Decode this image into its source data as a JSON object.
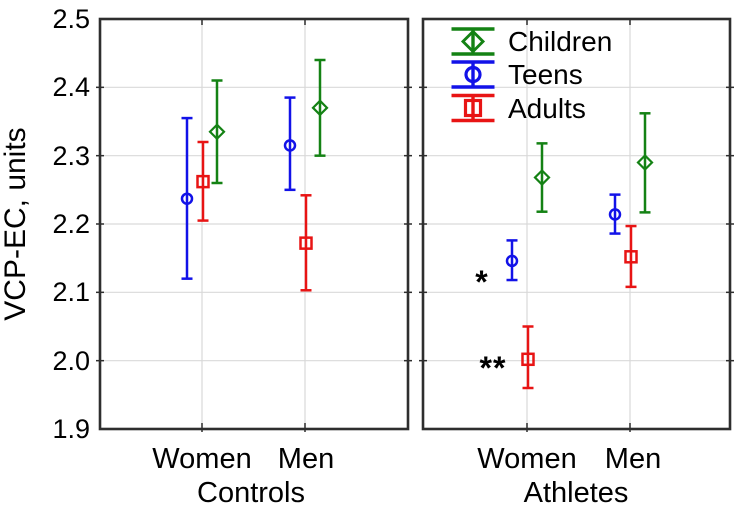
{
  "chart_data": {
    "type": "errorbar",
    "title": "",
    "ylabel": "VCP-EC, units",
    "ylim": [
      1.9,
      2.5
    ],
    "yticks": [
      "2.5",
      "2.4",
      "2.3",
      "2.2",
      "2.1",
      "2.0",
      "1.9"
    ],
    "grid": true,
    "legend_position": "top-left-of-right-panel",
    "legend": [
      {
        "name": "Children",
        "marker": "diamond",
        "color": "#148214"
      },
      {
        "name": "Teens",
        "marker": "circle",
        "color": "#1212E8"
      },
      {
        "name": "Adults",
        "marker": "square",
        "color": "#E81414"
      }
    ],
    "panels": [
      {
        "label": "Controls",
        "categories": [
          "Women",
          "Men"
        ],
        "series": [
          {
            "name": "Children",
            "points": [
              {
                "y": 2.335,
                "lo": 2.26,
                "hi": 2.41
              },
              {
                "y": 2.37,
                "lo": 2.3,
                "hi": 2.44
              }
            ]
          },
          {
            "name": "Teens",
            "points": [
              {
                "y": 2.237,
                "lo": 2.12,
                "hi": 2.355
              },
              {
                "y": 2.315,
                "lo": 2.25,
                "hi": 2.385
              }
            ]
          },
          {
            "name": "Adults",
            "points": [
              {
                "y": 2.262,
                "lo": 2.205,
                "hi": 2.32
              },
              {
                "y": 2.172,
                "lo": 2.103,
                "hi": 2.242
              }
            ]
          }
        ],
        "annotations": []
      },
      {
        "label": "Athletes",
        "categories": [
          "Women",
          "Men"
        ],
        "series": [
          {
            "name": "Children",
            "points": [
              {
                "y": 2.268,
                "lo": 2.218,
                "hi": 2.318
              },
              {
                "y": 2.29,
                "lo": 2.217,
                "hi": 2.362
              }
            ]
          },
          {
            "name": "Teens",
            "points": [
              {
                "y": 2.146,
                "lo": 2.118,
                "hi": 2.176
              },
              {
                "y": 2.214,
                "lo": 2.186,
                "hi": 2.243
              }
            ]
          },
          {
            "name": "Adults",
            "points": [
              {
                "y": 2.002,
                "lo": 1.96,
                "hi": 2.05
              },
              {
                "y": 2.152,
                "lo": 2.108,
                "hi": 2.197
              }
            ]
          }
        ],
        "annotations": [
          {
            "text": "*",
            "series": "Teens",
            "category": "Women"
          },
          {
            "text": "**",
            "series": "Adults",
            "category": "Women"
          }
        ]
      }
    ]
  }
}
